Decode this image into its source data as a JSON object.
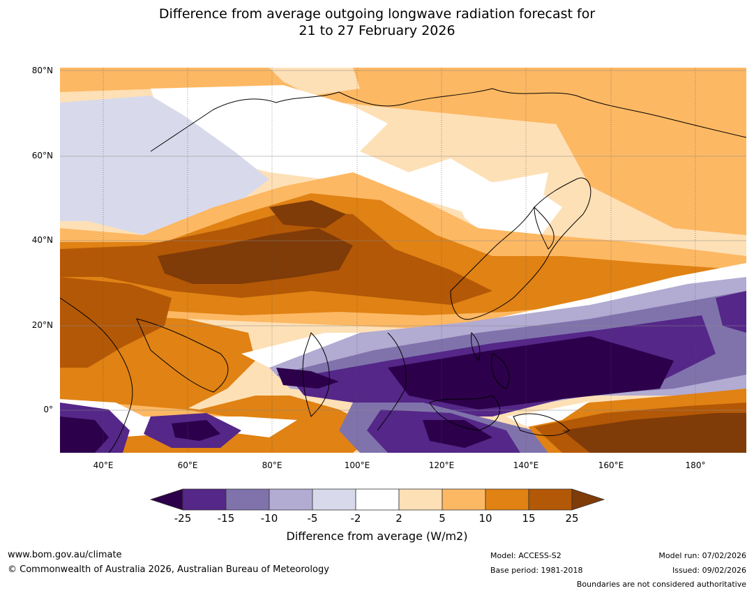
{
  "title": {
    "line1": "Difference from average outgoing longwave radiation forecast for",
    "line2": "21 to 27 February 2026"
  },
  "map": {
    "lat_labels": [
      "80°N",
      "60°N",
      "40°N",
      "20°N",
      "0°"
    ],
    "lon_labels": [
      "40°E",
      "60°E",
      "80°E",
      "100°E",
      "120°E",
      "140°E",
      "160°E",
      "180°"
    ],
    "lat_range": [
      -10,
      80
    ],
    "lon_range": [
      30,
      192
    ]
  },
  "colorbar": {
    "ticks": [
      "-25",
      "-15",
      "-10",
      "-5",
      "-2",
      "2",
      "5",
      "10",
      "15",
      "25"
    ],
    "label": "Difference from average (W/m2)",
    "colors": [
      "#2d004b",
      "#542788",
      "#8073ac",
      "#b2abd2",
      "#d8daeb",
      "#ffffff",
      "#fee0b6",
      "#fdb863",
      "#e08214",
      "#b35806",
      "#7f3b08"
    ]
  },
  "footer": {
    "url": "www.bom.gov.au/climate",
    "copyright": "© Commonwealth of Australia 2026, Australian Bureau of Meteorology",
    "model": "Model: ACCESS-S2",
    "base_period": "Base period: 1981-2018",
    "model_run": "Model run: 07/02/2026",
    "issued": "Issued: 09/02/2026",
    "disclaimer": "Boundaries are not considered authoritative"
  }
}
